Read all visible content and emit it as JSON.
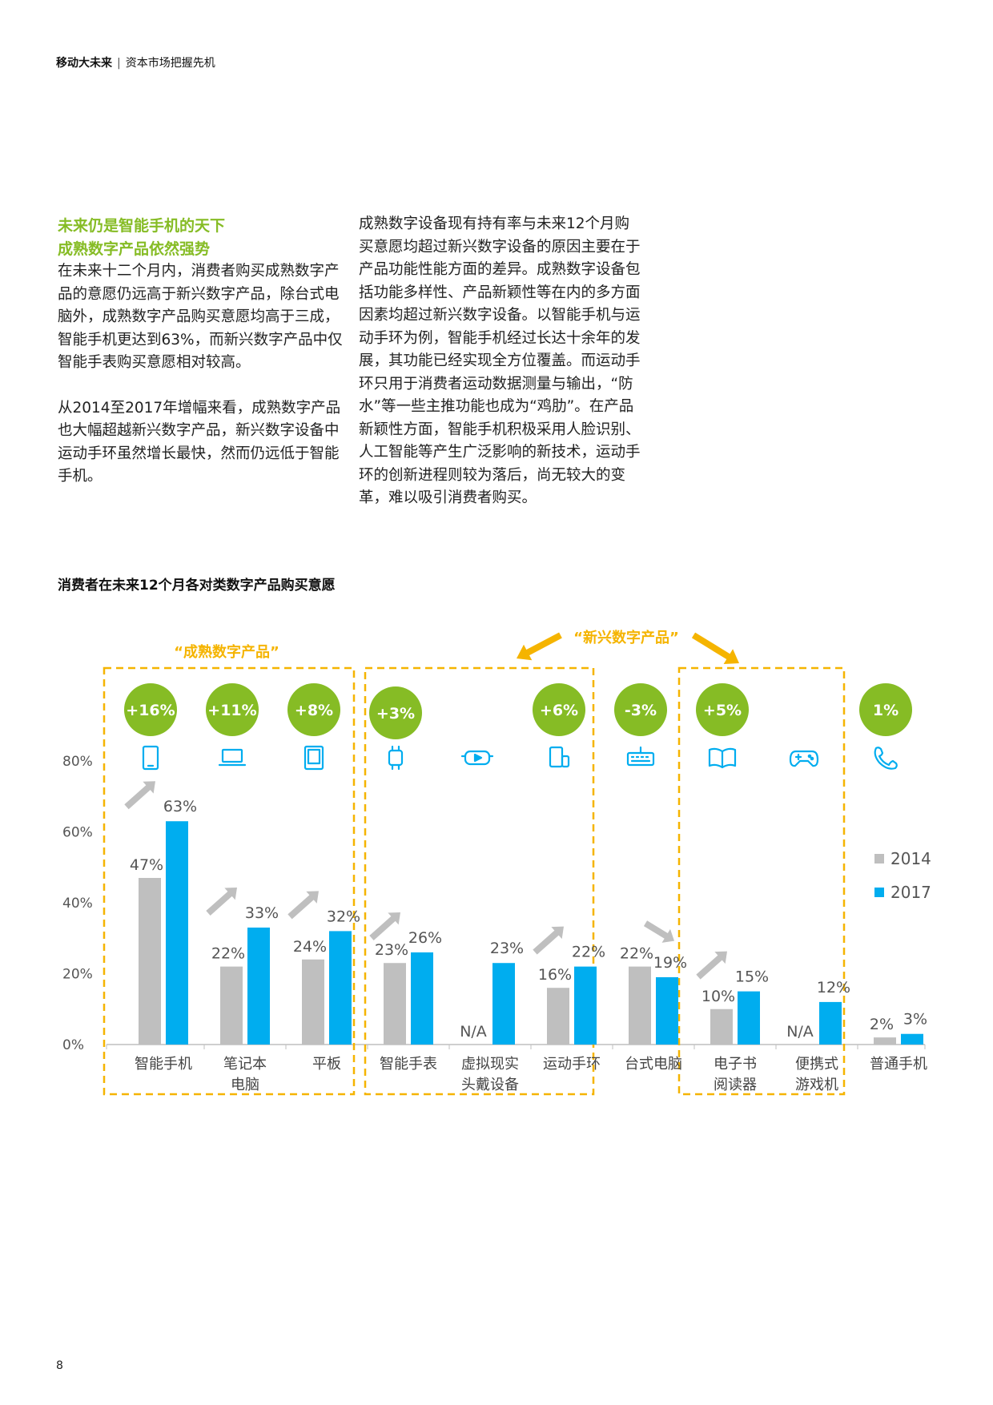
{
  "header": {
    "title": "移动大未来",
    "separator": "|",
    "subtitle": "资本市场把握先机"
  },
  "left_column": {
    "heading1": "未来仍是智能手机的天下",
    "heading2": "成熟数字产品依然强势",
    "para1": "在未来十二个月内，消费者购买成熟数字产品的意愿仍远高于新兴数字产品，除台式电脑外，成熟数字产品购买意愿均高于三成，智能手机更达到63%，而新兴数字产品中仅智能手表购买意愿相对较高。",
    "para2": "从2014至2017年增幅来看，成熟数字产品也大幅超越新兴数字产品，新兴数字设备中运动手环虽然增长最快，然而仍远低于智能手机。"
  },
  "right_column": {
    "para": "成熟数字设备现有持有率与未来12个月购买意愿均超过新兴数字设备的原因主要在于产品功能性能方面的差异。成熟数字设备包括功能多样性、产品新颖性等在内的多方面因素均超过新兴数字设备。以智能手机与运动手环为例，智能手机经过长达十余年的发展，其功能已经实现全方位覆盖。而运动手环只用于消费者运动数据测量与输出，“防水”等一些主推功能也成为“鸡肋”。在产品新颖性方面，智能手机积极采用人脸识别、人工智能等产生广泛影响的新技术，运动手环的创新进程则较为落后，尚无较大的变革，难以吸引消费者购买。"
  },
  "chart_data": {
    "type": "bar",
    "title": "消费者在未来12个月各对类数字产品购买意愿",
    "categories": [
      [
        "智能手机"
      ],
      [
        "笔记本",
        "电脑"
      ],
      [
        "平板"
      ],
      [
        "智能手表"
      ],
      [
        "虚拟现实",
        "头戴设备"
      ],
      [
        "运动手环"
      ],
      [
        "台式电脑"
      ],
      [
        "电子书",
        "阅读器"
      ],
      [
        "便携式",
        "游戏机"
      ],
      [
        "普通手机"
      ]
    ],
    "series": [
      {
        "name": "2014",
        "values": [
          47,
          22,
          24,
          23,
          null,
          16,
          22,
          10,
          null,
          2
        ],
        "labels": [
          "47%",
          "22%",
          "24%",
          "23%",
          "N/A",
          "16%",
          "22%",
          "10%",
          "N/A",
          "2%"
        ],
        "color": "#BFBFBF"
      },
      {
        "name": "2017",
        "values": [
          63,
          33,
          32,
          26,
          23,
          22,
          19,
          15,
          12,
          3
        ],
        "labels": [
          "63%",
          "33%",
          "32%",
          "26%",
          "23%",
          "22%",
          "19%",
          "15%",
          "12%",
          "3%"
        ],
        "color": "#00ADEF"
      }
    ],
    "change_badges": [
      "+16%",
      "+11%",
      "+8%",
      "+3%",
      "",
      "+6%",
      "-3%",
      "+5%",
      "",
      "1%"
    ],
    "badge_color": "#86BC25",
    "trend_arrows": [
      "up",
      "up",
      "up",
      "up",
      "",
      "up",
      "down",
      "up",
      "",
      ""
    ],
    "arrow_color": "#BFBFBF",
    "icons": [
      "smartphone-icon",
      "laptop-icon",
      "tablet-icon",
      "smartwatch-icon",
      "vr-headset-icon",
      "fitness-band-icon",
      "keyboard-icon",
      "ebook-icon",
      "gamepad-icon",
      "phone-icon"
    ],
    "icon_color": "#00ADEF",
    "groups": [
      {
        "label": "“成熟数字产品”",
        "members": [
          0,
          1,
          2
        ]
      },
      {
        "label": "“新兴数字产品”",
        "members": [
          3,
          4,
          5,
          7,
          8
        ]
      }
    ],
    "group_color": "#F5B400",
    "yticks": [
      "0%",
      "20%",
      "40%",
      "60%",
      "80%"
    ],
    "ylim": [
      0,
      80
    ],
    "legend": [
      "2014",
      "2017"
    ],
    "legend_position": "right"
  },
  "page_number": "8"
}
